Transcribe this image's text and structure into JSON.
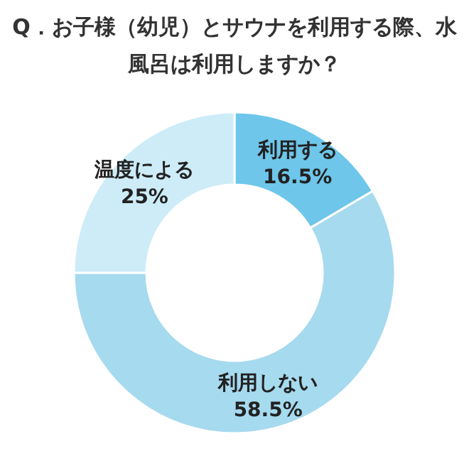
{
  "chart_data": {
    "type": "donut",
    "title": "Q．お子様（幼児）とサウナを利用する際、水風呂は利用しますか？",
    "categories": [
      "利用する",
      "利用しない",
      "温度による"
    ],
    "values": [
      16.5,
      58.5,
      25
    ],
    "value_labels": [
      "16.5%",
      "58.5%",
      "25%"
    ],
    "colors": [
      "#6ec6ea",
      "#a6daef",
      "#cdecf8"
    ]
  }
}
